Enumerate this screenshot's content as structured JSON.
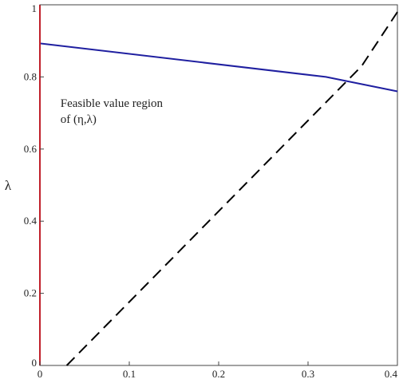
{
  "chart_data": {
    "type": "line",
    "title": "",
    "xlabel": "",
    "ylabel": "λ",
    "xlim": [
      0,
      0.4
    ],
    "ylim": [
      0,
      1
    ],
    "x_ticks": [
      "0",
      "0.1",
      "0.2",
      "0.3",
      "0.4"
    ],
    "y_ticks": [
      "0",
      "0.2",
      "0.4",
      "0.6",
      "0.8",
      "1"
    ],
    "grid": false,
    "series": [
      {
        "color": "#1f1fa0",
        "style": "solid",
        "points": [
          [
            0,
            0.893
          ],
          [
            0.32,
            0.8
          ],
          [
            0.4,
            0.76
          ]
        ]
      },
      {
        "color": "#000000",
        "style": "dashed",
        "points": [
          [
            0.03,
            0
          ],
          [
            0.36,
            0.83
          ],
          [
            0.4,
            0.98
          ]
        ]
      },
      {
        "color": "#c0202a",
        "style": "solid",
        "points": [
          [
            0,
            0
          ],
          [
            0,
            1
          ]
        ]
      }
    ],
    "annotation": {
      "line1": "Feasible  value  region",
      "line2": "of (η,λ)",
      "x": 0.023,
      "y": 0.655
    }
  }
}
